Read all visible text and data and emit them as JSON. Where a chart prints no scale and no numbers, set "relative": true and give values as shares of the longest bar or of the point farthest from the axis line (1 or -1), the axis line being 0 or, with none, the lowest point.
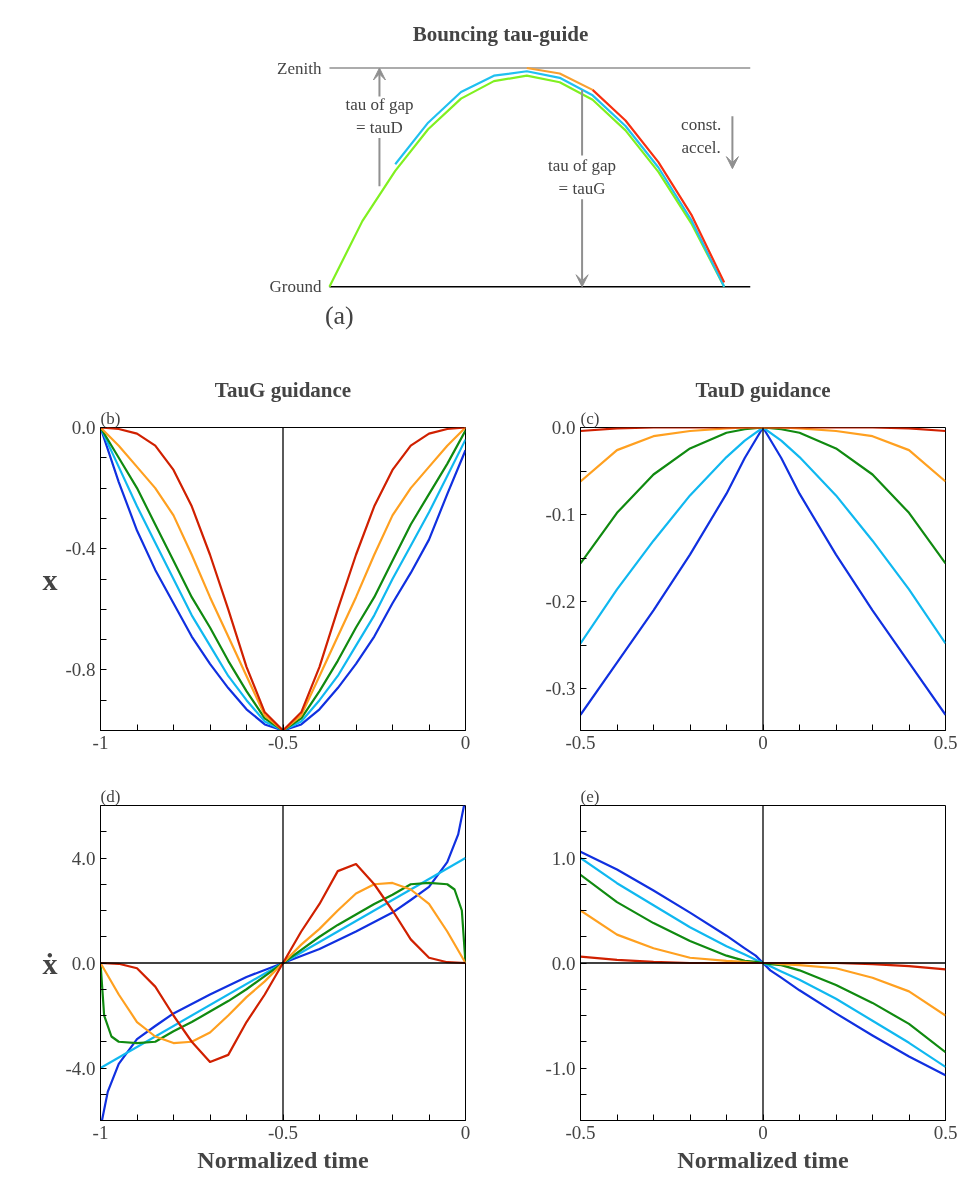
{
  "chart_data": [
    {
      "type": "line",
      "title": "Bouncing tau-guide",
      "relative": true,
      "categories": [
        null,
        null,
        null,
        null,
        null,
        null,
        null,
        null,
        null,
        null,
        null,
        null,
        null
      ],
      "series": [
        {
          "color": "#80f020",
          "values": [
            0,
            0.3,
            0.53,
            0.72,
            0.86,
            0.94,
            0.965,
            0.935,
            0.855,
            0.715,
            0.525,
            0.29,
            0
          ]
        },
        {
          "color": "#20c0f0",
          "values": [
            null,
            null,
            0.56,
            0.75,
            0.89,
            0.965,
            0.985,
            0.955,
            0.875,
            0.735,
            0.545,
            0.305,
            0
          ]
        },
        {
          "color": "#f8a030",
          "values": [
            null,
            null,
            null,
            null,
            null,
            null,
            1,
            0.975,
            0.9,
            null,
            null,
            null,
            null
          ]
        },
        {
          "color": "#f83010",
          "values": [
            null,
            null,
            null,
            null,
            null,
            null,
            null,
            null,
            0.9,
            0.76,
            0.57,
            0.33,
            0.02
          ]
        }
      ],
      "ref_lines": [
        {
          "axis": "y",
          "value": 1,
          "label": "Zenith",
          "color": "#909090"
        },
        {
          "axis": "y",
          "value": 0,
          "label": "Ground",
          "color": "#000000"
        }
      ],
      "annotations": [
        "tau of gap\n= tauD",
        "tau of gap\n= tauG",
        "const.\naccel.",
        "(a)"
      ]
    },
    {
      "type": "line",
      "title": "TauG guidance",
      "ylabel": "x",
      "xlim": [
        -1,
        0
      ],
      "ylim": [
        -1,
        0
      ],
      "x": [
        -1,
        -0.95,
        -0.9,
        -0.85,
        -0.8,
        -0.75,
        -0.7,
        -0.65,
        -0.6,
        -0.55,
        -0.5,
        -0.45,
        -0.4,
        -0.35,
        -0.3,
        -0.25,
        -0.2,
        -0.15,
        -0.1,
        -0.05,
        0
      ],
      "xticks": [
        -1,
        {
          "value": -0.9,
          "label": null
        },
        {
          "value": -0.8,
          "label": null
        },
        {
          "value": -0.7,
          "label": null
        },
        {
          "value": -0.6,
          "label": null
        },
        -0.5,
        {
          "value": -0.4,
          "label": null
        },
        {
          "value": -0.3,
          "label": null
        },
        {
          "value": -0.2,
          "label": null
        },
        {
          "value": -0.1,
          "label": null
        },
        0
      ],
      "yticks": [
        {
          "value": 0,
          "label": "0.0"
        },
        {
          "value": -0.1,
          "label": null
        },
        {
          "value": -0.2,
          "label": null
        },
        {
          "value": -0.3,
          "label": null
        },
        -0.4,
        {
          "value": -0.5,
          "label": null
        },
        {
          "value": -0.6,
          "label": null
        },
        {
          "value": -0.7,
          "label": null
        },
        -0.8,
        {
          "value": -0.9,
          "label": null
        }
      ],
      "series": [
        {
          "color": "#1030e0",
          "values": [
            0,
            -0.18,
            -0.34,
            -0.47,
            -0.58,
            -0.69,
            -0.78,
            -0.86,
            -0.93,
            -0.98,
            -1,
            -0.98,
            -0.93,
            -0.86,
            -0.78,
            -0.69,
            -0.58,
            -0.48,
            -0.37,
            -0.22,
            -0.075
          ]
        },
        {
          "color": "#10b8f0",
          "values": [
            0,
            -0.13,
            -0.26,
            -0.38,
            -0.5,
            -0.62,
            -0.72,
            -0.82,
            -0.9,
            -0.97,
            -1,
            -0.97,
            -0.9,
            -0.82,
            -0.72,
            -0.62,
            -0.5,
            -0.39,
            -0.28,
            -0.16,
            -0.04
          ]
        },
        {
          "color": "#108a10",
          "values": [
            0,
            -0.1,
            -0.2,
            -0.32,
            -0.44,
            -0.56,
            -0.66,
            -0.77,
            -0.87,
            -0.96,
            -1,
            -0.96,
            -0.87,
            -0.77,
            -0.66,
            -0.56,
            -0.44,
            -0.32,
            -0.22,
            -0.12,
            -0.01
          ]
        },
        {
          "color": "#ffa020",
          "values": [
            0,
            -0.06,
            -0.13,
            -0.2,
            -0.29,
            -0.42,
            -0.56,
            -0.69,
            -0.82,
            -0.95,
            -1,
            -0.95,
            -0.82,
            -0.69,
            -0.56,
            -0.42,
            -0.29,
            -0.2,
            -0.13,
            -0.06,
            0
          ]
        },
        {
          "color": "#d02000",
          "values": [
            0,
            -0.005,
            -0.02,
            -0.06,
            -0.14,
            -0.26,
            -0.42,
            -0.6,
            -0.79,
            -0.94,
            -1,
            -0.94,
            -0.79,
            -0.6,
            -0.42,
            -0.26,
            -0.14,
            -0.06,
            -0.02,
            -0.005,
            0
          ]
        }
      ],
      "ref_lines": [
        {
          "axis": "x",
          "value": -0.5,
          "color": "#000000"
        }
      ],
      "annotations": [
        "(b)"
      ]
    },
    {
      "type": "line",
      "title": "TauD guidance",
      "xlim": [
        -0.5,
        0.5
      ],
      "ylim": [
        -0.348,
        0
      ],
      "x": [
        -0.5,
        -0.4,
        -0.3,
        -0.2,
        -0.1,
        -0.05,
        0,
        0.05,
        0.1,
        0.2,
        0.3,
        0.4,
        0.5
      ],
      "xticks": [
        -0.5,
        {
          "value": -0.4,
          "label": null
        },
        {
          "value": -0.3,
          "label": null
        },
        {
          "value": -0.2,
          "label": null
        },
        {
          "value": -0.1,
          "label": null
        },
        0,
        {
          "value": 0.1,
          "label": null
        },
        {
          "value": 0.2,
          "label": null
        },
        {
          "value": 0.3,
          "label": null
        },
        {
          "value": 0.4,
          "label": null
        },
        0.5
      ],
      "yticks": [
        {
          "value": 0,
          "label": "0.0"
        },
        {
          "value": -0.05,
          "label": null
        },
        -0.1,
        {
          "value": -0.15,
          "label": null
        },
        -0.2,
        {
          "value": -0.25,
          "label": null
        },
        -0.3
      ],
      "series": [
        {
          "color": "#1030e0",
          "values": [
            -0.33,
            -0.27,
            -0.21,
            -0.146,
            -0.076,
            -0.035,
            0,
            -0.035,
            -0.076,
            -0.146,
            -0.21,
            -0.27,
            -0.33
          ]
        },
        {
          "color": "#10b8f0",
          "values": [
            -0.248,
            -0.186,
            -0.13,
            -0.078,
            -0.034,
            -0.015,
            0,
            -0.015,
            -0.034,
            -0.078,
            -0.13,
            -0.186,
            -0.248
          ]
        },
        {
          "color": "#108a10",
          "values": [
            -0.156,
            -0.098,
            -0.054,
            -0.024,
            -0.006,
            -0.002,
            0,
            -0.002,
            -0.006,
            -0.024,
            -0.054,
            -0.098,
            -0.156
          ]
        },
        {
          "color": "#ffa020",
          "values": [
            -0.062,
            -0.026,
            -0.01,
            -0.004,
            -0.001,
            0,
            0,
            0,
            -0.001,
            -0.004,
            -0.01,
            -0.026,
            -0.062
          ]
        },
        {
          "color": "#d02000",
          "values": [
            -0.004,
            -0.001,
            0,
            0,
            0,
            0,
            0,
            0,
            0,
            0,
            0,
            -0.001,
            -0.004
          ]
        }
      ],
      "ref_lines": [
        {
          "axis": "x",
          "value": 0,
          "color": "#000000"
        }
      ],
      "annotations": [
        "(c)"
      ]
    },
    {
      "type": "line",
      "xlabel": "Normalized time",
      "ylabel": "ẋ",
      "xlim": [
        -1,
        0
      ],
      "ylim": [
        -6,
        6
      ],
      "xticks": [
        -1,
        {
          "value": -0.9,
          "label": null
        },
        {
          "value": -0.8,
          "label": null
        },
        {
          "value": -0.7,
          "label": null
        },
        {
          "value": -0.6,
          "label": null
        },
        -0.5,
        {
          "value": -0.4,
          "label": null
        },
        {
          "value": -0.3,
          "label": null
        },
        {
          "value": -0.2,
          "label": null
        },
        {
          "value": -0.1,
          "label": null
        },
        0
      ],
      "yticks": [
        {
          "value": 5,
          "label": null
        },
        {
          "value": 4,
          "label": "4.0"
        },
        {
          "value": 3,
          "label": null
        },
        {
          "value": 2,
          "label": null
        },
        {
          "value": 1,
          "label": null
        },
        {
          "value": 0,
          "label": "0.0"
        },
        {
          "value": -1,
          "label": null
        },
        {
          "value": -2,
          "label": null
        },
        {
          "value": -3,
          "label": null
        },
        {
          "value": -4,
          "label": "-4.0"
        },
        {
          "value": -5,
          "label": null
        }
      ],
      "series": [
        {
          "color": "#1030e0",
          "x": [
            -0.996,
            -0.98,
            -0.95,
            -0.9,
            -0.85,
            -0.8,
            -0.7,
            -0.6,
            -0.5,
            -0.4,
            -0.3,
            -0.2,
            -0.15,
            -0.1,
            -0.05,
            -0.02,
            -0.004
          ],
          "values": [
            -6,
            -4.9,
            -3.84,
            -2.9,
            -2.4,
            -1.92,
            -1.2,
            -0.53,
            0,
            0.53,
            1.2,
            1.92,
            2.4,
            2.9,
            3.84,
            4.9,
            6
          ]
        },
        {
          "color": "#10b8f0",
          "x": [
            -1,
            -0.5,
            0
          ],
          "values": [
            -4,
            0,
            4
          ]
        },
        {
          "color": "#108a10",
          "x": [
            -1,
            -0.99,
            -0.97,
            -0.95,
            -0.9,
            -0.85,
            -0.8,
            -0.75,
            -0.7,
            -0.65,
            -0.6,
            -0.55,
            -0.5,
            -0.45,
            -0.4,
            -0.35,
            -0.3,
            -0.25,
            -0.2,
            -0.15,
            -0.1,
            -0.05,
            -0.03,
            -0.01,
            0
          ],
          "values": [
            0,
            -2.0,
            -2.8,
            -3.0,
            -3.05,
            -3.0,
            -2.6,
            -2.25,
            -1.85,
            -1.45,
            -1.0,
            -0.5,
            0,
            0.5,
            1.0,
            1.45,
            1.85,
            2.25,
            2.6,
            3.0,
            3.05,
            3.0,
            2.8,
            2.0,
            0
          ]
        },
        {
          "color": "#ffa020",
          "x": [
            -1,
            -0.95,
            -0.9,
            -0.85,
            -0.8,
            -0.75,
            -0.7,
            -0.65,
            -0.6,
            -0.55,
            -0.5,
            -0.45,
            -0.4,
            -0.35,
            -0.3,
            -0.25,
            -0.2,
            -0.15,
            -0.1,
            -0.05,
            0
          ],
          "values": [
            0,
            -1.2,
            -2.25,
            -2.8,
            -3.05,
            -3.0,
            -2.65,
            -2.0,
            -1.3,
            -0.7,
            0,
            0.7,
            1.3,
            2.0,
            2.65,
            3.0,
            3.05,
            2.8,
            2.25,
            1.2,
            0
          ]
        },
        {
          "color": "#d02000",
          "x": [
            -1,
            -0.95,
            -0.9,
            -0.85,
            -0.8,
            -0.75,
            -0.7,
            -0.65,
            -0.6,
            -0.55,
            -0.5,
            -0.45,
            -0.4,
            -0.35,
            -0.3,
            -0.25,
            -0.2,
            -0.15,
            -0.1,
            -0.05,
            0
          ],
          "values": [
            0,
            -0.03,
            -0.2,
            -0.9,
            -2.0,
            -3.0,
            -3.77,
            -3.5,
            -2.25,
            -1.2,
            0,
            1.2,
            2.25,
            3.5,
            3.77,
            3.0,
            2.0,
            0.9,
            0.2,
            0.03,
            0
          ]
        }
      ],
      "ref_lines": [
        {
          "axis": "x",
          "value": -0.5,
          "color": "#000000"
        },
        {
          "axis": "y",
          "value": 0,
          "color": "#000000"
        }
      ],
      "annotations": [
        "(d)"
      ]
    },
    {
      "type": "line",
      "xlabel": "Normalized time",
      "xlim": [
        -0.5,
        0.5
      ],
      "ylim": [
        -1.5,
        1.5
      ],
      "x": [
        -0.5,
        -0.4,
        -0.3,
        -0.2,
        -0.1,
        -0.05,
        -0.02,
        0,
        0.02,
        0.05,
        0.1,
        0.2,
        0.3,
        0.4,
        0.5
      ],
      "xticks": [
        -0.5,
        {
          "value": -0.4,
          "label": null
        },
        {
          "value": -0.3,
          "label": null
        },
        {
          "value": -0.2,
          "label": null
        },
        {
          "value": -0.1,
          "label": null
        },
        0,
        {
          "value": 0.1,
          "label": null
        },
        {
          "value": 0.2,
          "label": null
        },
        {
          "value": 0.3,
          "label": null
        },
        {
          "value": 0.4,
          "label": null
        },
        0.5
      ],
      "yticks": [
        {
          "value": 1.25,
          "label": null
        },
        {
          "value": 1,
          "label": "1.0"
        },
        {
          "value": 0.75,
          "label": null
        },
        {
          "value": 0.5,
          "label": null
        },
        {
          "value": 0.25,
          "label": null
        },
        {
          "value": 0,
          "label": "0.0"
        },
        {
          "value": -0.25,
          "label": null
        },
        {
          "value": -0.5,
          "label": null
        },
        {
          "value": -0.75,
          "label": null
        },
        {
          "value": -1,
          "label": "-1.0"
        },
        {
          "value": -1.25,
          "label": null
        }
      ],
      "series": [
        {
          "color": "#1030e0",
          "values": [
            1.06,
            0.89,
            0.69,
            0.48,
            0.26,
            0.14,
            0.07,
            0,
            -0.07,
            -0.14,
            -0.26,
            -0.48,
            -0.69,
            -0.89,
            -1.07
          ]
        },
        {
          "color": "#10b8f0",
          "values": [
            1.0,
            0.76,
            0.55,
            0.34,
            0.16,
            0.08,
            0.03,
            0,
            -0.03,
            -0.08,
            -0.16,
            -0.34,
            -0.55,
            -0.76,
            -0.99
          ]
        },
        {
          "color": "#108a10",
          "values": [
            0.84,
            0.58,
            0.38,
            0.21,
            0.07,
            0.02,
            0.01,
            0,
            -0.01,
            -0.02,
            -0.07,
            -0.21,
            -0.38,
            -0.58,
            -0.85
          ]
        },
        {
          "color": "#ffa020",
          "values": [
            0.5,
            0.27,
            0.14,
            0.05,
            0.02,
            0.01,
            0,
            0,
            0,
            -0.01,
            -0.02,
            -0.05,
            -0.14,
            -0.27,
            -0.5
          ]
        },
        {
          "color": "#d02000",
          "values": [
            0.06,
            0.03,
            0.01,
            0,
            0,
            0,
            0,
            0,
            0,
            0,
            0,
            0,
            -0.01,
            -0.03,
            -0.06
          ]
        }
      ],
      "ref_lines": [
        {
          "axis": "x",
          "value": 0,
          "color": "#000000"
        },
        {
          "axis": "y",
          "value": 0,
          "color": "#000000"
        }
      ],
      "annotations": [
        "(e)"
      ]
    }
  ]
}
